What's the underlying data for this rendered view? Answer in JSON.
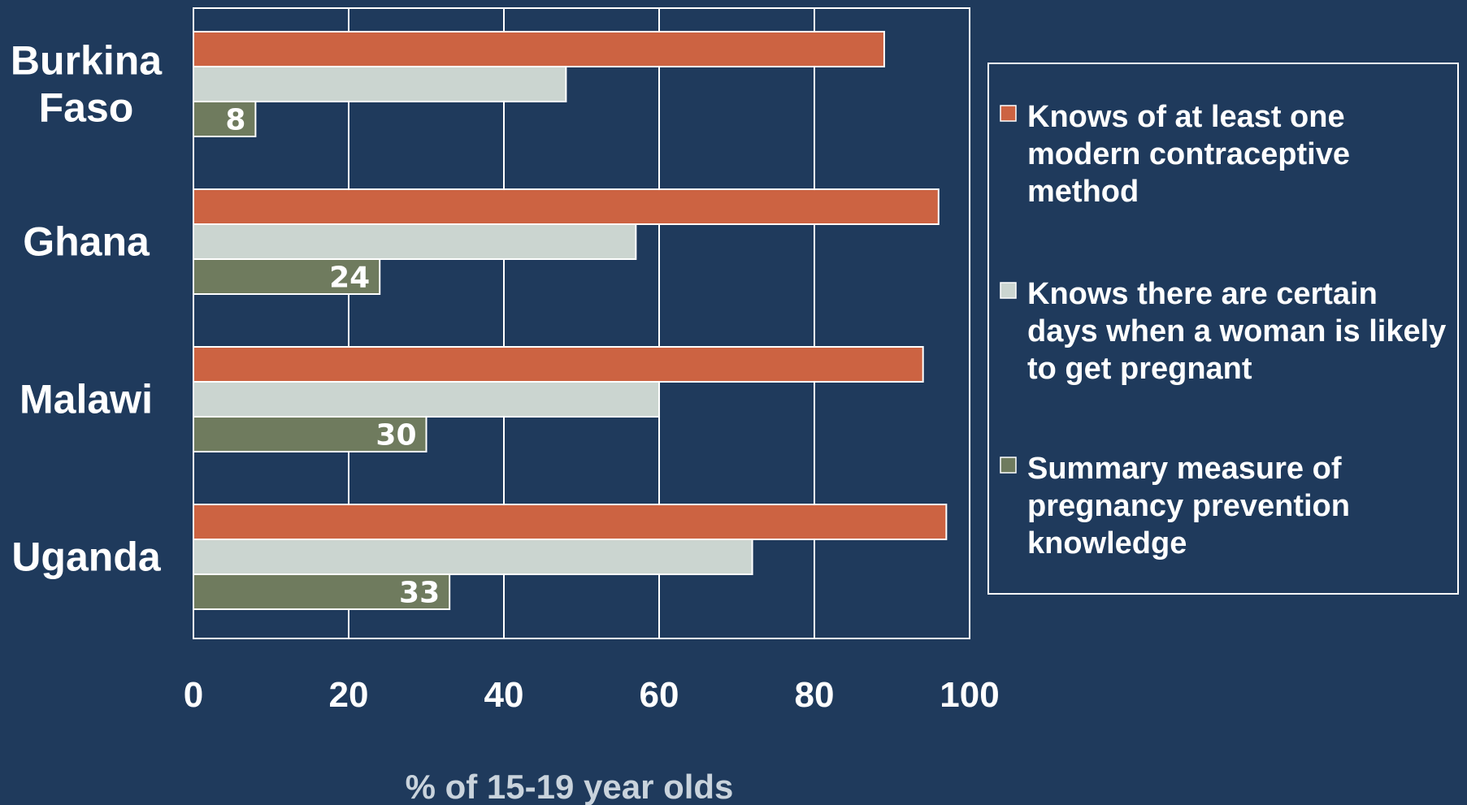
{
  "chart_data": {
    "type": "bar",
    "orientation": "horizontal",
    "categories": [
      [
        "Burkina",
        "Faso"
      ],
      [
        "Ghana"
      ],
      [
        "Malawi"
      ],
      [
        "Uganda"
      ]
    ],
    "series": [
      {
        "name": [
          "Knows of at least one",
          "modern contraceptive",
          "method"
        ],
        "color": "#cc6342",
        "values": [
          89,
          96,
          94,
          97
        ],
        "labels": [
          "",
          "",
          "",
          ""
        ]
      },
      {
        "name": [
          "Knows there are certain",
          "days when a woman is likely",
          "to get pregnant"
        ],
        "color": "#cbd5d0",
        "values": [
          48,
          57,
          60,
          72
        ],
        "labels": [
          "",
          "",
          "",
          ""
        ]
      },
      {
        "name": [
          "Summary measure of",
          "pregnancy prevention",
          "knowledge"
        ],
        "color": "#6f7b5e",
        "values": [
          8,
          24,
          30,
          33
        ],
        "labels": [
          "8",
          "24",
          "30",
          "33"
        ]
      }
    ],
    "xlim": [
      0,
      100
    ],
    "xticks": [
      "0",
      "20",
      "40",
      "60",
      "80",
      "100"
    ],
    "xlabel": "% of 15-19 year olds",
    "grid": true,
    "legend_position": "right"
  }
}
